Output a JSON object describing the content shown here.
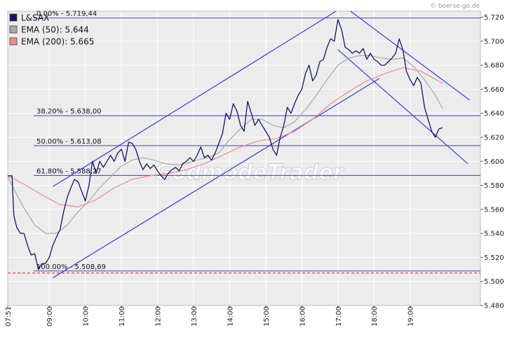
{
  "credit": "© boerse-go.de",
  "watermark": "GodmodeTrader",
  "chart_data": {
    "type": "line",
    "title": "",
    "legend": {
      "placement": "top-left",
      "entries": [
        {
          "label": "L&SAX",
          "color": "#141466"
        },
        {
          "label": "EMA (50): 5.644",
          "color": "#a8a8a8"
        },
        {
          "label": "EMA (200): 5.665",
          "color": "#f08a8a"
        }
      ]
    },
    "colors": {
      "price": "#141466",
      "ema50": "#a8a8a8",
      "ema200": "#f08a8a",
      "guides": "#3b3bdc",
      "support": "#cc2222",
      "grid": "#ffffff",
      "plot_bg": "#ececec"
    },
    "ylim": [
      5.48,
      5.725
    ],
    "xlim": [
      7.85,
      20.95
    ],
    "y_ticks": [
      "5.720",
      "5.700",
      "5.680",
      "5.660",
      "5.640",
      "5.620",
      "5.600",
      "5.580",
      "5.560",
      "5.540",
      "5.520",
      "5.500",
      "5.480"
    ],
    "x_ticks": [
      {
        "label": "07:51",
        "x": 7.85
      },
      {
        "label": "09:00",
        "x": 9.0
      },
      {
        "label": "10:00",
        "x": 10.0
      },
      {
        "label": "11:00",
        "x": 11.0
      },
      {
        "label": "12:00",
        "x": 12.0
      },
      {
        "label": "13:00",
        "x": 13.0
      },
      {
        "label": "14:00",
        "x": 14.0
      },
      {
        "label": "15:00",
        "x": 15.0
      },
      {
        "label": "16:00",
        "x": 16.0
      },
      {
        "label": "17:00",
        "x": 17.0
      },
      {
        "label": "18:00",
        "x": 18.0
      },
      {
        "label": "19:00",
        "x": 19.0
      }
    ],
    "fibonacci": [
      {
        "label": "0.00% - 5.719,44",
        "y": 5.7194
      },
      {
        "label": "38.20% - 5.638,00",
        "y": 5.638
      },
      {
        "label": "50.00% - 5.613,08",
        "y": 5.6131
      },
      {
        "label": "61.80% - 5.588,27",
        "y": 5.5883
      },
      {
        "label": "100.00% - 5.508,69",
        "y": 5.5087
      }
    ],
    "support_line": 5.507,
    "trend_lines": [
      {
        "name": "upper-channel",
        "x1": 9.1,
        "y1": 5.579,
        "x2": 16.95,
        "y2": 5.725
      },
      {
        "name": "lower-channel",
        "x1": 9.1,
        "y1": 5.503,
        "x2": 18.15,
        "y2": 5.669
      },
      {
        "name": "down-upper",
        "x1": 17.35,
        "y1": 5.725,
        "x2": 20.65,
        "y2": 5.651
      },
      {
        "name": "down-lower",
        "x1": 17.0,
        "y1": 5.693,
        "x2": 20.6,
        "y2": 5.598
      }
    ],
    "series": [
      {
        "name": "L&SAX",
        "points": [
          [
            7.85,
            5.588
          ],
          [
            7.97,
            5.588
          ],
          [
            8.02,
            5.555
          ],
          [
            8.1,
            5.545
          ],
          [
            8.2,
            5.54
          ],
          [
            8.3,
            5.54
          ],
          [
            8.4,
            5.53
          ],
          [
            8.5,
            5.522
          ],
          [
            8.6,
            5.523
          ],
          [
            8.7,
            5.51
          ],
          [
            8.8,
            5.515
          ],
          [
            8.9,
            5.515
          ],
          [
            9.0,
            5.52
          ],
          [
            9.1,
            5.53
          ],
          [
            9.2,
            5.537
          ],
          [
            9.3,
            5.543
          ],
          [
            9.4,
            5.558
          ],
          [
            9.5,
            5.57
          ],
          [
            9.6,
            5.578
          ],
          [
            9.7,
            5.585
          ],
          [
            9.8,
            5.583
          ],
          [
            9.9,
            5.575
          ],
          [
            10.0,
            5.567
          ],
          [
            10.1,
            5.58
          ],
          [
            10.2,
            5.6
          ],
          [
            10.3,
            5.59
          ],
          [
            10.4,
            5.6
          ],
          [
            10.5,
            5.595
          ],
          [
            10.6,
            5.6
          ],
          [
            10.7,
            5.605
          ],
          [
            10.8,
            5.6
          ],
          [
            10.9,
            5.607
          ],
          [
            11.0,
            5.61
          ],
          [
            11.1,
            5.6
          ],
          [
            11.2,
            5.616
          ],
          [
            11.3,
            5.615
          ],
          [
            11.4,
            5.61
          ],
          [
            11.5,
            5.6
          ],
          [
            11.6,
            5.593
          ],
          [
            11.7,
            5.598
          ],
          [
            11.8,
            5.594
          ],
          [
            11.9,
            5.597
          ],
          [
            12.0,
            5.592
          ],
          [
            12.1,
            5.588
          ],
          [
            12.2,
            5.585
          ],
          [
            12.3,
            5.59
          ],
          [
            12.4,
            5.593
          ],
          [
            12.5,
            5.595
          ],
          [
            12.6,
            5.592
          ],
          [
            12.7,
            5.598
          ],
          [
            12.8,
            5.6
          ],
          [
            12.9,
            5.603
          ],
          [
            13.0,
            5.6
          ],
          [
            13.1,
            5.605
          ],
          [
            13.2,
            5.612
          ],
          [
            13.3,
            5.603
          ],
          [
            13.4,
            5.605
          ],
          [
            13.5,
            5.601
          ],
          [
            13.6,
            5.607
          ],
          [
            13.7,
            5.615
          ],
          [
            13.8,
            5.623
          ],
          [
            13.9,
            5.64
          ],
          [
            14.0,
            5.635
          ],
          [
            14.1,
            5.648
          ],
          [
            14.2,
            5.642
          ],
          [
            14.3,
            5.63
          ],
          [
            14.4,
            5.625
          ],
          [
            14.5,
            5.65
          ],
          [
            14.6,
            5.64
          ],
          [
            14.7,
            5.63
          ],
          [
            14.8,
            5.635
          ],
          [
            14.9,
            5.63
          ],
          [
            15.0,
            5.625
          ],
          [
            15.1,
            5.62
          ],
          [
            15.2,
            5.61
          ],
          [
            15.3,
            5.605
          ],
          [
            15.4,
            5.62
          ],
          [
            15.5,
            5.63
          ],
          [
            15.6,
            5.645
          ],
          [
            15.7,
            5.64
          ],
          [
            15.8,
            5.648
          ],
          [
            15.9,
            5.655
          ],
          [
            16.0,
            5.66
          ],
          [
            16.1,
            5.673
          ],
          [
            16.2,
            5.68
          ],
          [
            16.3,
            5.667
          ],
          [
            16.4,
            5.672
          ],
          [
            16.5,
            5.683
          ],
          [
            16.6,
            5.685
          ],
          [
            16.7,
            5.695
          ],
          [
            16.8,
            5.702
          ],
          [
            16.9,
            5.7
          ],
          [
            17.0,
            5.718
          ],
          [
            17.1,
            5.71
          ],
          [
            17.2,
            5.695
          ],
          [
            17.3,
            5.693
          ],
          [
            17.4,
            5.69
          ],
          [
            17.5,
            5.692
          ],
          [
            17.6,
            5.69
          ],
          [
            17.7,
            5.694
          ],
          [
            17.8,
            5.685
          ],
          [
            17.9,
            5.69
          ],
          [
            18.0,
            5.685
          ],
          [
            18.1,
            5.683
          ],
          [
            18.2,
            5.68
          ],
          [
            18.3,
            5.68
          ],
          [
            18.4,
            5.683
          ],
          [
            18.5,
            5.686
          ],
          [
            18.6,
            5.69
          ],
          [
            18.7,
            5.702
          ],
          [
            18.8,
            5.693
          ],
          [
            18.9,
            5.675
          ],
          [
            19.0,
            5.668
          ],
          [
            19.1,
            5.663
          ],
          [
            19.2,
            5.67
          ],
          [
            19.3,
            5.665
          ],
          [
            19.4,
            5.645
          ],
          [
            19.5,
            5.635
          ],
          [
            19.6,
            5.625
          ],
          [
            19.7,
            5.62
          ],
          [
            19.8,
            5.627
          ],
          [
            19.9,
            5.628
          ]
        ]
      },
      {
        "name": "EMA (50): 5.644",
        "points": [
          [
            7.85,
            5.588
          ],
          [
            8.0,
            5.578
          ],
          [
            8.3,
            5.561
          ],
          [
            8.6,
            5.547
          ],
          [
            8.9,
            5.54
          ],
          [
            9.2,
            5.54
          ],
          [
            9.5,
            5.547
          ],
          [
            9.8,
            5.558
          ],
          [
            10.1,
            5.567
          ],
          [
            10.4,
            5.578
          ],
          [
            10.7,
            5.587
          ],
          [
            11.0,
            5.596
          ],
          [
            11.3,
            5.601
          ],
          [
            11.6,
            5.603
          ],
          [
            11.9,
            5.601
          ],
          [
            12.2,
            5.598
          ],
          [
            12.5,
            5.597
          ],
          [
            12.8,
            5.598
          ],
          [
            13.1,
            5.601
          ],
          [
            13.4,
            5.603
          ],
          [
            13.7,
            5.607
          ],
          [
            14.0,
            5.618
          ],
          [
            14.3,
            5.627
          ],
          [
            14.6,
            5.635
          ],
          [
            14.9,
            5.635
          ],
          [
            15.2,
            5.63
          ],
          [
            15.5,
            5.628
          ],
          [
            15.8,
            5.633
          ],
          [
            16.1,
            5.643
          ],
          [
            16.4,
            5.655
          ],
          [
            16.7,
            5.668
          ],
          [
            17.0,
            5.68
          ],
          [
            17.3,
            5.686
          ],
          [
            17.6,
            5.688
          ],
          [
            17.9,
            5.688
          ],
          [
            18.2,
            5.686
          ],
          [
            18.5,
            5.685
          ],
          [
            18.8,
            5.686
          ],
          [
            19.1,
            5.679
          ],
          [
            19.4,
            5.668
          ],
          [
            19.7,
            5.655
          ],
          [
            19.9,
            5.644
          ]
        ]
      },
      {
        "name": "EMA (200): 5.665",
        "points": [
          [
            7.85,
            5.588
          ],
          [
            8.3,
            5.581
          ],
          [
            8.8,
            5.572
          ],
          [
            9.3,
            5.564
          ],
          [
            9.8,
            5.562
          ],
          [
            10.3,
            5.568
          ],
          [
            10.8,
            5.578
          ],
          [
            11.3,
            5.585
          ],
          [
            11.8,
            5.588
          ],
          [
            12.3,
            5.59
          ],
          [
            12.8,
            5.593
          ],
          [
            13.3,
            5.598
          ],
          [
            13.8,
            5.605
          ],
          [
            14.3,
            5.612
          ],
          [
            14.8,
            5.617
          ],
          [
            15.3,
            5.619
          ],
          [
            15.8,
            5.625
          ],
          [
            16.3,
            5.635
          ],
          [
            16.8,
            5.648
          ],
          [
            17.3,
            5.658
          ],
          [
            17.8,
            5.667
          ],
          [
            18.3,
            5.673
          ],
          [
            18.8,
            5.678
          ],
          [
            19.3,
            5.675
          ],
          [
            19.9,
            5.665
          ]
        ]
      }
    ]
  }
}
